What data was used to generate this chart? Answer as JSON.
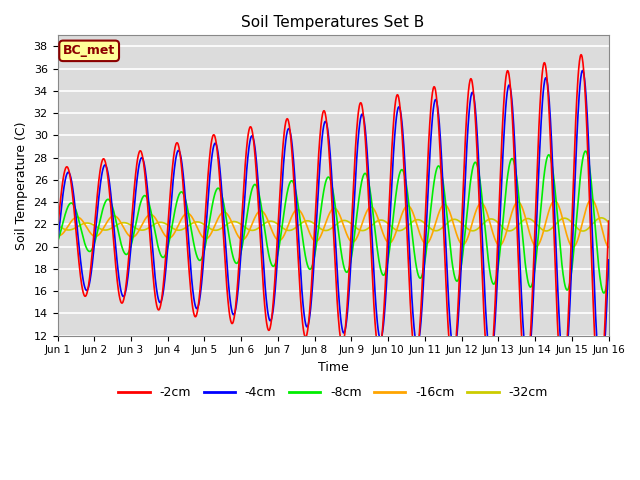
{
  "title": "Soil Temperatures Set B",
  "xlabel": "Time",
  "ylabel": "Soil Temperature (C)",
  "ylim": [
    12,
    39
  ],
  "yticks": [
    12,
    14,
    16,
    18,
    20,
    22,
    24,
    26,
    28,
    30,
    32,
    34,
    36,
    38
  ],
  "xtick_labels": [
    "Jun 1",
    "Jun 2",
    "Jun 3",
    "Jun 4",
    "Jun 5",
    "Jun 6",
    "Jun 7",
    "Jun 8",
    "Jun 9",
    "Jun 10",
    "Jun 11",
    "Jun 12",
    "Jun 13",
    "Jun 14",
    "Jun 15",
    "Jun 16"
  ],
  "annotation_text": "BC_met",
  "annotation_color": "#8B0000",
  "annotation_bg": "#FFFF99",
  "background_color": "#DCDCDC",
  "series": [
    {
      "label": "-2cm",
      "color": "#FF0000"
    },
    {
      "label": "-4cm",
      "color": "#0000FF"
    },
    {
      "label": "-8cm",
      "color": "#00EE00"
    },
    {
      "label": "-16cm",
      "color": "#FFA500"
    },
    {
      "label": "-32cm",
      "color": "#CCCC00"
    }
  ],
  "n_days": 15,
  "points_per_day": 96,
  "linewidth": 1.2
}
